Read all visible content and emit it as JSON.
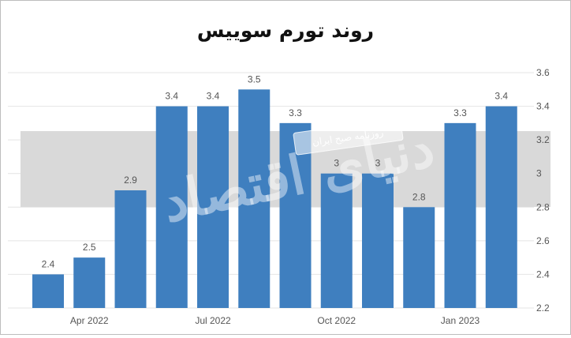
{
  "title": "روند تورم سوییس",
  "watermark": {
    "banner_text": "روزنامه صبح ایران",
    "script_text": "دنیای اقتصاد"
  },
  "colors": {
    "bar": "#3f7fbf",
    "label": "#555555",
    "band": "#d9d9d9",
    "grid": "#e4e4e4"
  },
  "chart_data": {
    "type": "bar",
    "title": "روند تورم سوییس",
    "xlabel": "",
    "ylabel": "",
    "values": [
      2.4,
      2.5,
      2.9,
      3.4,
      3.4,
      3.5,
      3.3,
      3.0,
      3.0,
      2.8,
      3.3,
      3.4
    ],
    "value_labels": [
      "2.4",
      "2.5",
      "2.9",
      "3.4",
      "3.4",
      "3.5",
      "3.3",
      "3",
      "3",
      "2.8",
      "3.3",
      "3.4"
    ],
    "x_tick_labels": [
      {
        "label": "Apr 2022",
        "bar_index": 1
      },
      {
        "label": "Jul 2022",
        "bar_index": 4
      },
      {
        "label": "Oct 2022",
        "bar_index": 7
      },
      {
        "label": "Jan 2023",
        "bar_index": 10
      }
    ],
    "y_ticks": [
      {
        "value": 2.2,
        "label": "2.2"
      },
      {
        "value": 2.4,
        "label": "2.4"
      },
      {
        "value": 2.6,
        "label": "2.6"
      },
      {
        "value": 2.8,
        "label": "2.8"
      },
      {
        "value": 3.0,
        "label": "3"
      },
      {
        "value": 3.2,
        "label": "3.2"
      },
      {
        "value": 3.4,
        "label": "3.4"
      },
      {
        "value": 3.6,
        "label": "3.6"
      }
    ],
    "ylim": [
      2.2,
      3.6
    ],
    "y_axis_position": "right",
    "grid": true,
    "legend": "none"
  }
}
